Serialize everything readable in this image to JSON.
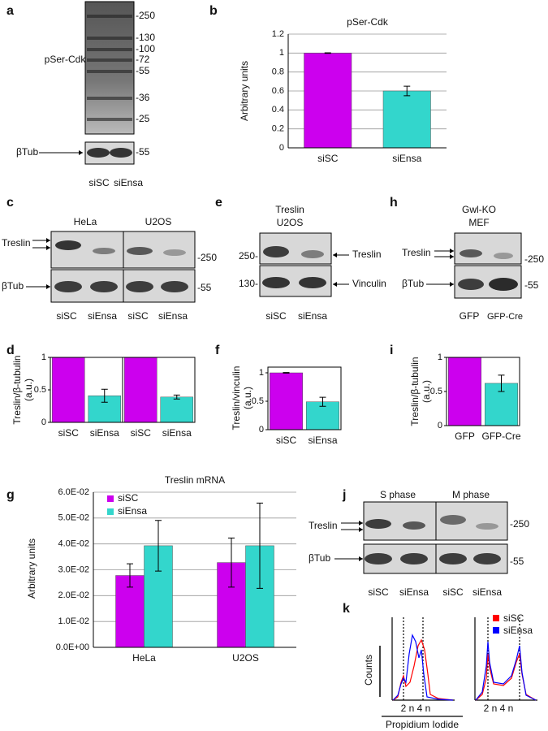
{
  "panel_labels": [
    "a",
    "b",
    "c",
    "d",
    "e",
    "f",
    "g",
    "h",
    "i",
    "j",
    "k"
  ],
  "blot_a": {
    "label": "pSer-Cdk",
    "markers": [
      "-250",
      "-130",
      "-100",
      "-72",
      "-55",
      "-36",
      "-25"
    ],
    "loading": "βTub",
    "loading_marker": "-55",
    "lanes": [
      "siSC",
      "siEnsa"
    ]
  },
  "blot_c": {
    "cell_lines": [
      "HeLa",
      "U2OS"
    ],
    "label": "Treslin",
    "marker": "-250",
    "loading": "βTub",
    "loading_marker": "-55",
    "lanes": [
      "siSC",
      "siEnsa",
      "siSC",
      "siEnsa"
    ]
  },
  "blot_e": {
    "title": [
      "Treslin",
      "U2OS"
    ],
    "markers": [
      "250-",
      "130-"
    ],
    "bands": [
      "Treslin",
      "Vinculin"
    ],
    "lanes": [
      "siSC",
      "siEnsa"
    ]
  },
  "blot_h": {
    "title": [
      "Gwl-KO",
      "MEF"
    ],
    "label": "Treslin",
    "marker": "-250",
    "loading": "βTub",
    "loading_marker": "-55",
    "lanes": [
      "GFP",
      "GFP-Cre"
    ]
  },
  "blot_j": {
    "phases": [
      "S phase",
      "M phase"
    ],
    "label": "Treslin",
    "marker": "-250",
    "loading": "βTub",
    "loading_marker": "-55",
    "lanes": [
      "siSC",
      "siEnsa",
      "siSC",
      "siEnsa"
    ]
  },
  "flow_k": {
    "series": [
      "siSC",
      "siEnsa"
    ],
    "colors": [
      "#ff0000",
      "#0000ff"
    ],
    "ylabel": "Counts",
    "xticks": [
      "2 n 4 n",
      "2 n 4 n"
    ],
    "xlabel": "Propidium Iodide"
  },
  "chart_data": [
    {
      "type": "bar",
      "title": "pSer-Cdk",
      "ylabel": "Arbitrary units",
      "categories": [
        "siSC",
        "siEnsa"
      ],
      "values": [
        1,
        0.6
      ],
      "errors": [
        0.003,
        0.05
      ],
      "colors": [
        "#cc00ee",
        "#33d6cc"
      ],
      "ylim": [
        0,
        1.2
      ],
      "yticks": [
        0,
        0.2,
        0.4,
        0.6,
        0.8,
        1,
        1.2
      ],
      "grid": true
    },
    {
      "type": "bar",
      "ylabel": [
        "Treslin/β-tubulin",
        "(a.u.)"
      ],
      "categories": [
        "siSC",
        "siEnsa",
        "siSC",
        "siEnsa"
      ],
      "values": [
        1,
        0.41,
        1,
        0.39
      ],
      "errors": [
        0,
        0.1,
        0,
        0.03
      ],
      "colors": [
        "#cc00ee",
        "#33d6cc",
        "#cc00ee",
        "#33d6cc"
      ],
      "ylim": [
        0,
        1
      ],
      "yticks": [
        0,
        0.5,
        1
      ],
      "grid": false
    },
    {
      "type": "bar",
      "ylabel": [
        "Treslin/vinculin",
        "(a.u.)"
      ],
      "categories": [
        "siSC",
        "siEnsa"
      ],
      "values": [
        1,
        0.49
      ],
      "errors": [
        0.005,
        0.08
      ],
      "colors": [
        "#cc00ee",
        "#33d6cc"
      ],
      "ylim": [
        0,
        1.1
      ],
      "yticks": [
        0,
        0.5,
        1
      ],
      "grid": false
    },
    {
      "type": "bar",
      "ylabel": [
        "Treslin/β-tubulin",
        "(a.u.)"
      ],
      "categories": [
        "GFP",
        "GFP-Cre"
      ],
      "values": [
        1,
        0.62
      ],
      "errors": [
        0,
        0.12
      ],
      "colors": [
        "#cc00ee",
        "#33d6cc"
      ],
      "ylim": [
        0,
        1
      ],
      "yticks": [
        0,
        0.5,
        1
      ],
      "grid": false
    },
    {
      "type": "grouped-bar",
      "title": "Treslin mRNA",
      "ylabel": "Arbitrary units",
      "categories": [
        "HeLa",
        "U2OS"
      ],
      "series": [
        {
          "name": "siSC",
          "color": "#cc00ee",
          "values": [
            0.0278,
            0.0328
          ],
          "errors": [
            0.0045,
            0.0095
          ]
        },
        {
          "name": "siEnsa",
          "color": "#33d6cc",
          "values": [
            0.0393,
            0.0393
          ],
          "errors": [
            0.0098,
            0.0165
          ]
        }
      ],
      "ylim": [
        0,
        0.06
      ],
      "yticks": [
        {
          "value": 0,
          "label": "0.0E+00"
        },
        {
          "value": 0.01,
          "label": "1.0E-02"
        },
        {
          "value": 0.02,
          "label": "2.0E-02"
        },
        {
          "value": 0.03,
          "label": "3.0E-02"
        },
        {
          "value": 0.04,
          "label": "4.0E-02"
        },
        {
          "value": 0.05,
          "label": "5.0E-02"
        },
        {
          "value": 0.06,
          "label": "6.0E-02"
        }
      ],
      "grid": true,
      "legend": "top-left"
    }
  ]
}
